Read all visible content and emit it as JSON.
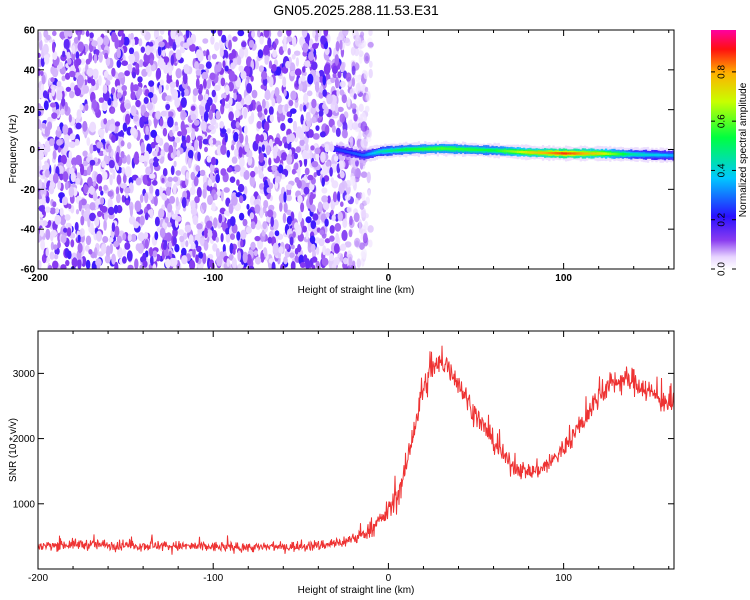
{
  "title": "GN05.2025.288.11.53.E31",
  "chart_data": [
    {
      "type": "heatmap",
      "xlabel": "Height of straight line (km)",
      "ylabel": "Frequency (Hz)",
      "xlim": [
        -200,
        163
      ],
      "ylim": [
        -60,
        60
      ],
      "xticks": [
        -200,
        -100,
        0,
        100
      ],
      "yticks": [
        -60,
        -40,
        -20,
        0,
        20,
        40,
        60
      ],
      "grid": false,
      "colorbar": {
        "label": "Normalized spectral amplitude",
        "range": [
          0,
          0.97
        ],
        "ticks": [
          0.0,
          0.2,
          0.4,
          0.6,
          0.8
        ],
        "colormap": "rainbow (purple-blue-cyan-green-yellow-red-magenta)"
      },
      "noise_region_x": [
        -200,
        -10
      ],
      "signal_band": [
        {
          "x": -30,
          "f": 0.0,
          "amp": 0.25
        },
        {
          "x": -15,
          "f": -3.0,
          "amp": 0.3
        },
        {
          "x": -5,
          "f": -1.0,
          "amp": 0.45
        },
        {
          "x": 10,
          "f": 0.0,
          "amp": 0.55
        },
        {
          "x": 30,
          "f": 0.5,
          "amp": 0.6
        },
        {
          "x": 60,
          "f": -0.5,
          "amp": 0.55
        },
        {
          "x": 80,
          "f": -1.5,
          "amp": 0.75
        },
        {
          "x": 100,
          "f": -2.0,
          "amp": 0.9
        },
        {
          "x": 120,
          "f": -2.0,
          "amp": 0.75
        },
        {
          "x": 140,
          "f": -2.5,
          "amp": 0.45
        },
        {
          "x": 163,
          "f": -3.0,
          "amp": 0.35
        }
      ]
    },
    {
      "type": "line",
      "xlabel": "Height of straight line (km)",
      "ylabel": "SNR (10 * v/v)",
      "xlim": [
        -200,
        163
      ],
      "ylim": [
        0,
        3650
      ],
      "xticks": [
        -200,
        -100,
        0,
        100
      ],
      "yticks": [
        1000,
        2000,
        3000
      ],
      "grid": false,
      "series": [
        {
          "color": "#ee3333",
          "x": [
            -200,
            -180,
            -160,
            -140,
            -120,
            -100,
            -80,
            -60,
            -40,
            -25,
            -15,
            -10,
            -5,
            0,
            5,
            10,
            15,
            20,
            25,
            30,
            35,
            40,
            45,
            50,
            55,
            60,
            65,
            70,
            75,
            80,
            85,
            90,
            95,
            100,
            105,
            110,
            115,
            120,
            125,
            130,
            135,
            140,
            145,
            150,
            155,
            160,
            163
          ],
          "y": [
            350,
            380,
            370,
            360,
            350,
            340,
            330,
            340,
            360,
            420,
            520,
            620,
            730,
            900,
            1100,
            1550,
            2200,
            2750,
            3050,
            3150,
            3100,
            2850,
            2600,
            2350,
            2150,
            1950,
            1750,
            1600,
            1530,
            1480,
            1520,
            1580,
            1700,
            1850,
            2050,
            2200,
            2450,
            2650,
            2800,
            2880,
            2900,
            2880,
            2800,
            2700,
            2600,
            2550,
            2500
          ],
          "noise": [
            140,
            160,
            160,
            150,
            150,
            150,
            140,
            150,
            160,
            180,
            200,
            230,
            260,
            320,
            380,
            420,
            450,
            430,
            420,
            420,
            400,
            380,
            360,
            340,
            320,
            300,
            280,
            270,
            260,
            260,
            270,
            280,
            290,
            300,
            320,
            330,
            350,
            360,
            370,
            380,
            380,
            380,
            370,
            360,
            350,
            340,
            340
          ]
        }
      ]
    }
  ]
}
